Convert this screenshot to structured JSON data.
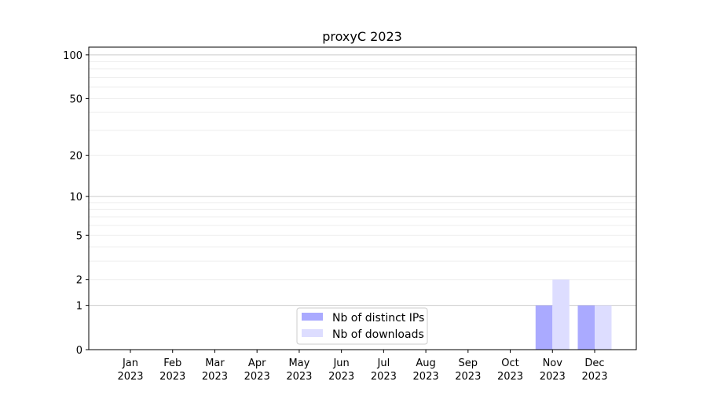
{
  "chart_data": {
    "type": "bar",
    "title": "proxyC 2023",
    "xlabel": "",
    "ylabel": "",
    "yscale": "log10(y+1)",
    "ylim": [
      0,
      113
    ],
    "yticks": [
      0,
      1,
      2,
      5,
      10,
      20,
      50,
      100
    ],
    "ytick_labels": [
      "0",
      "1",
      "2",
      "5",
      "10",
      "20",
      "50",
      "100"
    ],
    "grid": true,
    "legend_position": "bottom-center",
    "categories": [
      "Jan",
      "Feb",
      "Mar",
      "Apr",
      "May",
      "Jun",
      "Jul",
      "Aug",
      "Sep",
      "Oct",
      "Nov",
      "Dec"
    ],
    "category_year": "2023",
    "series": [
      {
        "name": "Nb of distinct IPs",
        "color": "#aaaaff",
        "values": [
          0,
          0,
          0,
          0,
          0,
          0,
          0,
          0,
          0,
          0,
          1,
          1
        ]
      },
      {
        "name": "Nb of downloads",
        "color": "#ddddff",
        "values": [
          0,
          0,
          0,
          0,
          0,
          0,
          0,
          0,
          0,
          0,
          2,
          1
        ]
      }
    ]
  }
}
